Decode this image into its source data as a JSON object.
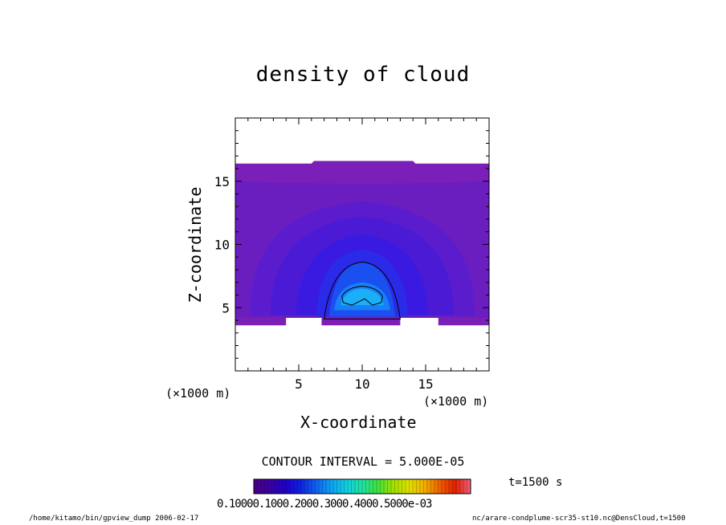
{
  "chart_data": {
    "type": "heatmap",
    "title": "density of cloud",
    "xlabel": "X-coordinate",
    "ylabel": "Z-coordinate",
    "x_unit_label": "(×1000 m)",
    "y_unit_label": "(×1000 m)",
    "xlim": [
      0,
      20
    ],
    "ylim": [
      0,
      20
    ],
    "x_ticks": [
      "5",
      "10",
      "15"
    ],
    "y_ticks": [
      "5",
      "10",
      "15"
    ],
    "contour_interval": "CONTOUR INTERVAL = 5.000E-05",
    "time_label": "t=1500 s",
    "colorbar_tick_text": "0.10000.1000.2000.3000.4000.5000e-03",
    "colorbar_colors": [
      "#4b0080",
      "#3a00a0",
      "#2000c8",
      "#1020e0",
      "#1060f0",
      "#10a0f0",
      "#10d0e0",
      "#20e0a0",
      "#40e040",
      "#a0e000",
      "#e0e000",
      "#f0b000",
      "#f06000",
      "#e02000",
      "#f06080"
    ],
    "regions": [
      {
        "level": 1e-05,
        "color": "#7a1fb8"
      },
      {
        "level": 2e-05,
        "color": "#6a1ec0"
      },
      {
        "level": 3e-05,
        "color": "#5a1ccc"
      },
      {
        "level": 4e-05,
        "color": "#4a1ad4"
      },
      {
        "level": 5e-05,
        "color": "#3a1ae0"
      },
      {
        "level": 6e-05,
        "color": "#2a2ae8"
      },
      {
        "level": 8e-05,
        "color": "#1a50f0"
      },
      {
        "level": 0.0001,
        "color": "#1a80f8"
      },
      {
        "level": 0.00012,
        "color": "#1ab0f8"
      }
    ]
  },
  "footer": {
    "left": "/home/kitamo/bin/gpview_dump  2006-02-17",
    "right": "nc/arare-condplume-scr35-st10.nc@DensCloud,t=1500"
  }
}
